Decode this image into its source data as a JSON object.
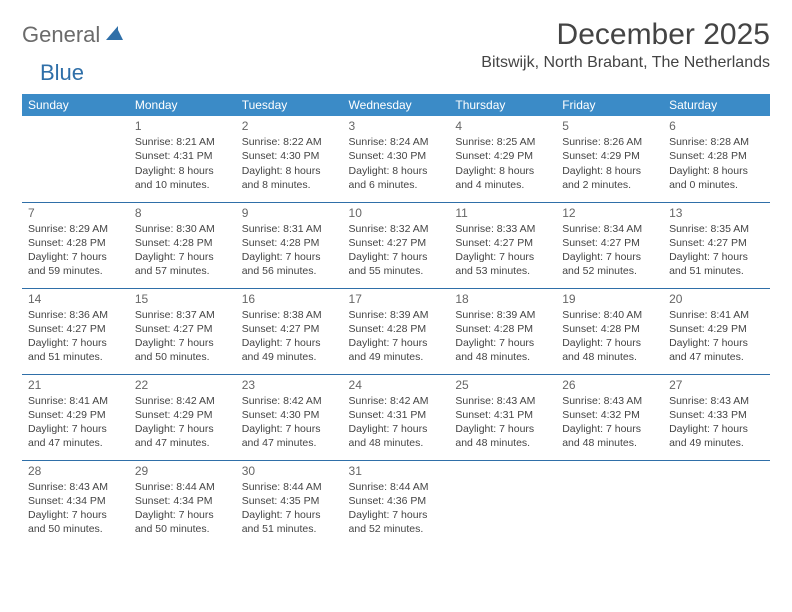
{
  "logo": {
    "text1": "General",
    "text2": "Blue"
  },
  "title": "December 2025",
  "location": "Bitswijk, North Brabant, The Netherlands",
  "colors": {
    "header_bg": "#3b8bc7",
    "header_text": "#ffffff",
    "row_divider": "#2f6fa8",
    "body_text": "#444444",
    "daynum_text": "#666666",
    "logo_gray": "#6b6b6b",
    "logo_blue": "#2f6fa8",
    "page_bg": "#ffffff"
  },
  "day_headers": [
    "Sunday",
    "Monday",
    "Tuesday",
    "Wednesday",
    "Thursday",
    "Friday",
    "Saturday"
  ],
  "weeks": [
    [
      null,
      {
        "n": "1",
        "sunrise": "8:21 AM",
        "sunset": "4:31 PM",
        "daylight": "8 hours and 10 minutes."
      },
      {
        "n": "2",
        "sunrise": "8:22 AM",
        "sunset": "4:30 PM",
        "daylight": "8 hours and 8 minutes."
      },
      {
        "n": "3",
        "sunrise": "8:24 AM",
        "sunset": "4:30 PM",
        "daylight": "8 hours and 6 minutes."
      },
      {
        "n": "4",
        "sunrise": "8:25 AM",
        "sunset": "4:29 PM",
        "daylight": "8 hours and 4 minutes."
      },
      {
        "n": "5",
        "sunrise": "8:26 AM",
        "sunset": "4:29 PM",
        "daylight": "8 hours and 2 minutes."
      },
      {
        "n": "6",
        "sunrise": "8:28 AM",
        "sunset": "4:28 PM",
        "daylight": "8 hours and 0 minutes."
      }
    ],
    [
      {
        "n": "7",
        "sunrise": "8:29 AM",
        "sunset": "4:28 PM",
        "daylight": "7 hours and 59 minutes."
      },
      {
        "n": "8",
        "sunrise": "8:30 AM",
        "sunset": "4:28 PM",
        "daylight": "7 hours and 57 minutes."
      },
      {
        "n": "9",
        "sunrise": "8:31 AM",
        "sunset": "4:28 PM",
        "daylight": "7 hours and 56 minutes."
      },
      {
        "n": "10",
        "sunrise": "8:32 AM",
        "sunset": "4:27 PM",
        "daylight": "7 hours and 55 minutes."
      },
      {
        "n": "11",
        "sunrise": "8:33 AM",
        "sunset": "4:27 PM",
        "daylight": "7 hours and 53 minutes."
      },
      {
        "n": "12",
        "sunrise": "8:34 AM",
        "sunset": "4:27 PM",
        "daylight": "7 hours and 52 minutes."
      },
      {
        "n": "13",
        "sunrise": "8:35 AM",
        "sunset": "4:27 PM",
        "daylight": "7 hours and 51 minutes."
      }
    ],
    [
      {
        "n": "14",
        "sunrise": "8:36 AM",
        "sunset": "4:27 PM",
        "daylight": "7 hours and 51 minutes."
      },
      {
        "n": "15",
        "sunrise": "8:37 AM",
        "sunset": "4:27 PM",
        "daylight": "7 hours and 50 minutes."
      },
      {
        "n": "16",
        "sunrise": "8:38 AM",
        "sunset": "4:27 PM",
        "daylight": "7 hours and 49 minutes."
      },
      {
        "n": "17",
        "sunrise": "8:39 AM",
        "sunset": "4:28 PM",
        "daylight": "7 hours and 49 minutes."
      },
      {
        "n": "18",
        "sunrise": "8:39 AM",
        "sunset": "4:28 PM",
        "daylight": "7 hours and 48 minutes."
      },
      {
        "n": "19",
        "sunrise": "8:40 AM",
        "sunset": "4:28 PM",
        "daylight": "7 hours and 48 minutes."
      },
      {
        "n": "20",
        "sunrise": "8:41 AM",
        "sunset": "4:29 PM",
        "daylight": "7 hours and 47 minutes."
      }
    ],
    [
      {
        "n": "21",
        "sunrise": "8:41 AM",
        "sunset": "4:29 PM",
        "daylight": "7 hours and 47 minutes."
      },
      {
        "n": "22",
        "sunrise": "8:42 AM",
        "sunset": "4:29 PM",
        "daylight": "7 hours and 47 minutes."
      },
      {
        "n": "23",
        "sunrise": "8:42 AM",
        "sunset": "4:30 PM",
        "daylight": "7 hours and 47 minutes."
      },
      {
        "n": "24",
        "sunrise": "8:42 AM",
        "sunset": "4:31 PM",
        "daylight": "7 hours and 48 minutes."
      },
      {
        "n": "25",
        "sunrise": "8:43 AM",
        "sunset": "4:31 PM",
        "daylight": "7 hours and 48 minutes."
      },
      {
        "n": "26",
        "sunrise": "8:43 AM",
        "sunset": "4:32 PM",
        "daylight": "7 hours and 48 minutes."
      },
      {
        "n": "27",
        "sunrise": "8:43 AM",
        "sunset": "4:33 PM",
        "daylight": "7 hours and 49 minutes."
      }
    ],
    [
      {
        "n": "28",
        "sunrise": "8:43 AM",
        "sunset": "4:34 PM",
        "daylight": "7 hours and 50 minutes."
      },
      {
        "n": "29",
        "sunrise": "8:44 AM",
        "sunset": "4:34 PM",
        "daylight": "7 hours and 50 minutes."
      },
      {
        "n": "30",
        "sunrise": "8:44 AM",
        "sunset": "4:35 PM",
        "daylight": "7 hours and 51 minutes."
      },
      {
        "n": "31",
        "sunrise": "8:44 AM",
        "sunset": "4:36 PM",
        "daylight": "7 hours and 52 minutes."
      },
      null,
      null,
      null
    ]
  ],
  "labels": {
    "sunrise": "Sunrise: ",
    "sunset": "Sunset: ",
    "daylight": "Daylight: "
  }
}
